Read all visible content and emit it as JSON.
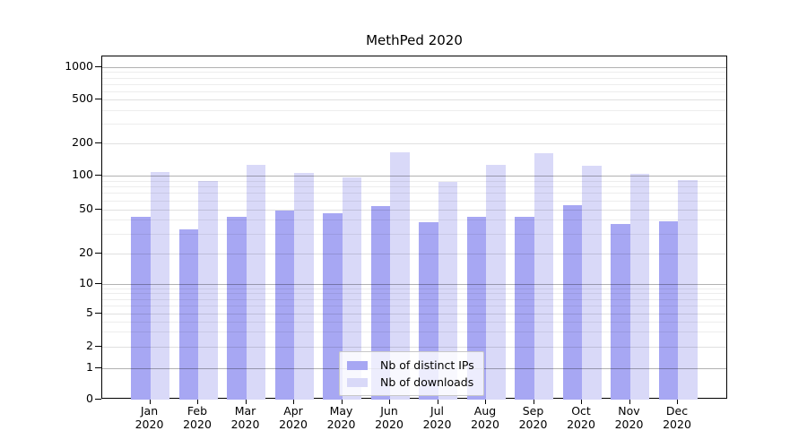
{
  "chart_data": {
    "type": "bar",
    "title": "MethPed 2020",
    "categories": [
      "Jan 2020",
      "Feb 2020",
      "Mar 2020",
      "Apr 2020",
      "May 2020",
      "Jun 2020",
      "Jul 2020",
      "Aug 2020",
      "Sep 2020",
      "Oct 2020",
      "Nov 2020",
      "Dec 2020"
    ],
    "series": [
      {
        "name": "Nb of distinct IPs",
        "color": "#a7a7f3",
        "values": [
          43,
          33,
          43,
          49,
          46,
          53,
          38,
          43,
          43,
          54,
          37,
          39
        ]
      },
      {
        "name": "Nb of downloads",
        "color": "#d9d9f8",
        "values": [
          109,
          90,
          125,
          105,
          97,
          165,
          88,
          125,
          162,
          123,
          103,
          92
        ]
      }
    ],
    "xlabel": "",
    "ylabel": "",
    "y_axis": {
      "scale": "log-like",
      "ticks": [
        0,
        1,
        2,
        5,
        10,
        20,
        50,
        100,
        200,
        500,
        1000
      ],
      "minor_ticks": [
        3,
        4,
        6,
        7,
        8,
        9,
        30,
        40,
        60,
        70,
        80,
        90,
        300,
        400,
        600,
        700,
        800,
        900
      ],
      "range": [
        0,
        1300
      ]
    },
    "grid": true,
    "legend_position": "bottom-center"
  },
  "colors": {
    "bar_distinct_ips": "#a7a7f3",
    "bar_downloads": "#d9d9f8",
    "plot_border": "#000000",
    "grid_major": "#b3b3b3",
    "grid_mid": "#dedede",
    "grid_minor": "#ededed",
    "legend_border": "#c8c8c8",
    "background": "#ffffff",
    "text": "#000000"
  }
}
